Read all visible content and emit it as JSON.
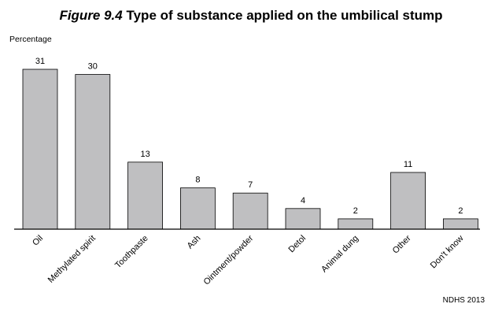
{
  "title": {
    "figure_label": "Figure 9.4",
    "text": "Type of substance applied on the umbilical stump"
  },
  "source": "NDHS 2013",
  "colors": {
    "bar_fill": "#bfbfc1",
    "bar_stroke": "#000000",
    "axis": "#000000"
  },
  "chart_data": {
    "type": "bar",
    "title": "Figure 9.4 Type of substance applied on the umbilical stump",
    "ylabel": "Percentage",
    "xlabel": "",
    "categories": [
      "Oil",
      "Methylated spirit",
      "Toothpaste",
      "Ash",
      "Ointment/powder",
      "Detol",
      "Animal dung",
      "Other",
      "Don't know"
    ],
    "values": [
      31,
      30,
      13,
      8,
      7,
      4,
      2,
      11,
      2
    ],
    "ylim": [
      0,
      31
    ],
    "grid": false,
    "data_labels": true
  }
}
